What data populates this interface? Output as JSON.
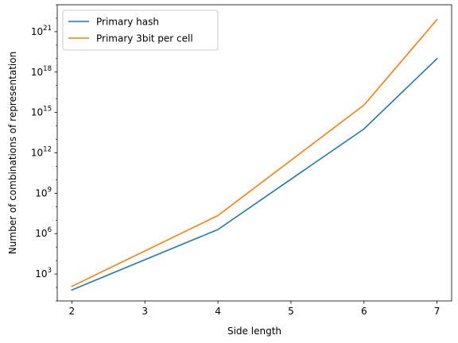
{
  "chart_data": {
    "type": "line",
    "xlabel": "Side length",
    "ylabel": "Number of combinations of representation",
    "x": [
      2,
      4,
      6,
      7
    ],
    "yscale": "log",
    "xlim": [
      1.8,
      7.2
    ],
    "ylim": [
      10.0,
      1e+23
    ],
    "xticks": [
      2,
      3,
      4,
      5,
      6,
      7
    ],
    "yticks": [
      {
        "value": 1000.0,
        "base": "10",
        "exp": "3"
      },
      {
        "value": 1000000.0,
        "base": "10",
        "exp": "6"
      },
      {
        "value": 1000000000.0,
        "base": "10",
        "exp": "9"
      },
      {
        "value": 1000000000000.0,
        "base": "10",
        "exp": "12"
      },
      {
        "value": 1000000000000000.0,
        "base": "10",
        "exp": "15"
      },
      {
        "value": 1e+18,
        "base": "10",
        "exp": "18"
      },
      {
        "value": 1e+21,
        "base": "10",
        "exp": "21"
      }
    ],
    "grid": false,
    "legend_position": "top-left",
    "series": [
      {
        "name": "Primary hash",
        "color": "#1f77b4",
        "values": [
          65,
          2000000,
          60000000000000.0,
          1e+19
        ]
      },
      {
        "name": "Primary 3bit per cell",
        "color": "#ff7f0e",
        "values": [
          120,
          22000000.0,
          3500000000000000.0,
          8e+21
        ]
      }
    ]
  }
}
